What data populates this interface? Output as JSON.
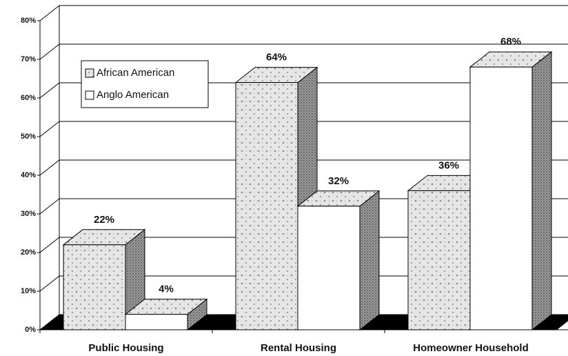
{
  "chart_data": {
    "type": "bar3d",
    "categories": [
      "Public Housing",
      "Rental Housing",
      "Homeowner Household"
    ],
    "series": [
      {
        "name": "African American",
        "color": "#cfcfcf",
        "values": [
          22,
          64,
          36
        ],
        "value_labels": [
          "22%",
          "64%",
          "36%"
        ]
      },
      {
        "name": "Anglo American",
        "color": "#ffffff",
        "values": [
          4,
          32,
          68
        ],
        "value_labels": [
          "4%",
          "32%",
          "68%"
        ]
      }
    ],
    "ylim": [
      0,
      80
    ],
    "yticks": [
      {
        "value": 0,
        "label": "0%"
      },
      {
        "value": 10,
        "label": "10%"
      },
      {
        "value": 20,
        "label": "20%"
      },
      {
        "value": 30,
        "label": "30%"
      },
      {
        "value": 40,
        "label": "40%"
      },
      {
        "value": 50,
        "label": "50%"
      },
      {
        "value": 60,
        "label": "60%"
      },
      {
        "value": 70,
        "label": "70%"
      },
      {
        "value": 80,
        "label": "80%"
      }
    ],
    "grid": true,
    "legend": "upper left"
  }
}
